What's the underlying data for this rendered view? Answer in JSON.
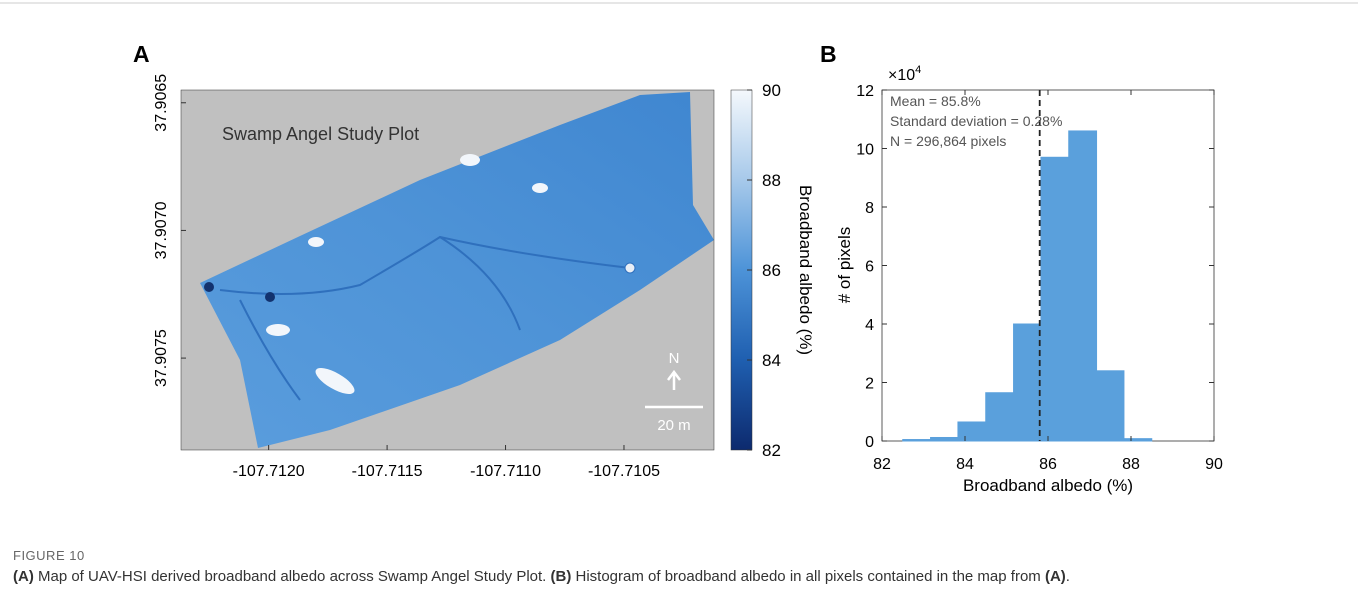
{
  "chart_data": [
    {
      "type": "map",
      "panel_label": "A",
      "annotation": "Swamp Angel Study Plot",
      "north_label": "N",
      "scale_bar_label": "20 m",
      "xlim": [
        -107.71237,
        -107.71012
      ],
      "xticks": [
        {
          "value": -107.712,
          "label": "-107.7120"
        },
        {
          "value": -107.7115,
          "label": "-107.7115"
        },
        {
          "value": -107.711,
          "label": "-107.7110"
        },
        {
          "value": -107.7105,
          "label": "-107.7105"
        }
      ],
      "ylim": [
        37.90645,
        37.90786
      ],
      "y_reversed": true,
      "yticks": [
        {
          "value": 37.9065,
          "label": "37.9065"
        },
        {
          "value": 37.907,
          "label": "37.9070"
        },
        {
          "value": 37.9075,
          "label": "37.9075"
        }
      ],
      "colorbar": {
        "label": "Broadband albedo (%)",
        "lim": [
          82,
          90
        ],
        "ticks": [
          82,
          84,
          86,
          88,
          90
        ]
      }
    },
    {
      "type": "histogram",
      "panel_label": "B",
      "bins": [
        82.5,
        83.17,
        83.83,
        84.5,
        85.17,
        85.83,
        86.5,
        87.17,
        87.83,
        88.5
      ],
      "counts": [
        0.05,
        0.12,
        0.65,
        1.65,
        4.0,
        9.7,
        10.6,
        2.4,
        0.08
      ],
      "color": "#5aa0dc",
      "xlim": [
        82,
        90
      ],
      "xticks": [
        82,
        84,
        86,
        88,
        90
      ],
      "ylim": [
        0,
        12
      ],
      "yticks": [
        0,
        2,
        4,
        6,
        8,
        10,
        12
      ],
      "y_multiplier": {
        "base": "×10",
        "exponent": "4"
      },
      "xlabel": "Broadband albedo (%)",
      "ylabel": "# of pixels",
      "annotations": [
        "Mean = 85.8%",
        "Standard deviation = 0.28%",
        "N = 296,864 pixels"
      ],
      "mean_line": 85.8
    }
  ],
  "caption": {
    "figure_label": "FIGURE 10",
    "segments": [
      {
        "text": "(A)",
        "bold": true
      },
      {
        "text": " Map of UAV-HSI derived broadband albedo across Swamp Angel Study Plot. ",
        "bold": false
      },
      {
        "text": "(B)",
        "bold": true
      },
      {
        "text": " Histogram of broadband albedo in all pixels contained in the map from ",
        "bold": false
      },
      {
        "text": "(A)",
        "bold": true
      },
      {
        "text": ".",
        "bold": false
      }
    ]
  }
}
